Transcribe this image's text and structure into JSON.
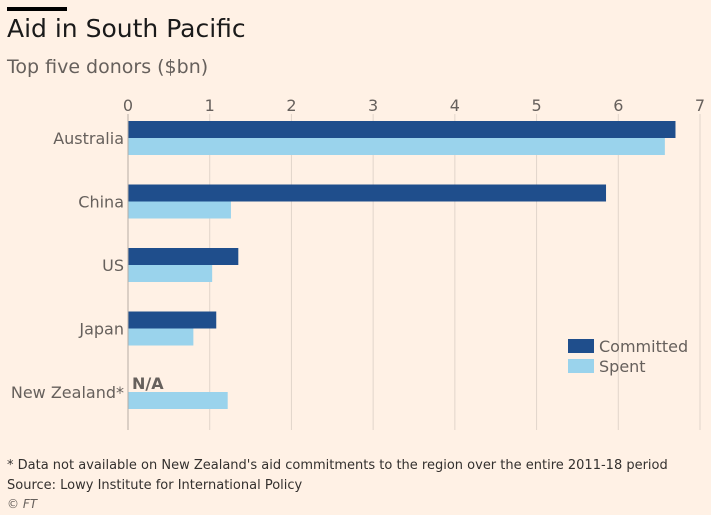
{
  "title": "Aid in South Pacific",
  "subtitle": "Top five donors ($bn)",
  "colors": {
    "committed": "#1F4E8C",
    "spent": "#9AD3EC",
    "grid": "#E1D5CB",
    "text": "#66605C",
    "background": "#FFF1E5"
  },
  "chart_data": {
    "type": "bar",
    "orientation": "horizontal",
    "categories": [
      "Australia",
      "China",
      "US",
      "Japan",
      "New Zealand*"
    ],
    "series": [
      {
        "name": "Committed",
        "values": [
          6.7,
          5.85,
          1.35,
          1.08,
          null
        ]
      },
      {
        "name": "Spent",
        "values": [
          6.57,
          1.26,
          1.03,
          0.8,
          1.22
        ]
      }
    ],
    "xlim": [
      0,
      7
    ],
    "xticks": [
      "0",
      "1",
      "2",
      "3",
      "4",
      "5",
      "6",
      "7"
    ],
    "grid": true,
    "legend": "bottom-right",
    "annotations": [
      {
        "category": "New Zealand*",
        "series": "Committed",
        "text": "N/A"
      }
    ]
  },
  "footer": {
    "note": "* Data not available on New Zealand's aid commitments to the region over the entire 2011-18 period",
    "source": "Source: Lowy Institute for International Policy",
    "copyright": "© FT"
  }
}
